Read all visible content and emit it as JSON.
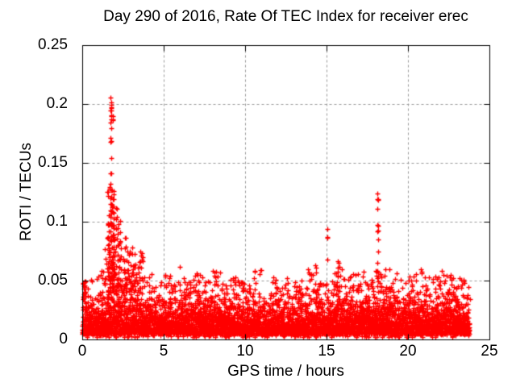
{
  "chart_data": {
    "type": "scatter",
    "title": "Day 290 of 2016, Rate Of TEC Index for receiver erec",
    "xlabel": "GPS time / hours",
    "ylabel": "ROTI / TECUs",
    "xlim": [
      0,
      25
    ],
    "ylim": [
      0,
      0.25
    ],
    "xticks": {
      "values": [
        0,
        5,
        10,
        15,
        20,
        25
      ],
      "labels": [
        "0",
        "5",
        "10",
        "15",
        "20",
        "25"
      ]
    },
    "yticks": {
      "values": [
        0,
        0.05,
        0.1,
        0.15,
        0.2,
        0.25
      ],
      "labels": [
        "0",
        "0.05",
        "0.1",
        "0.15",
        "0.2",
        "0.25"
      ]
    },
    "grid": {
      "visible": true,
      "style": "dashed",
      "color": "#999999"
    },
    "frame_color": "#000000",
    "marker": {
      "shape": "plus",
      "color": "#ff0000",
      "size": 7
    },
    "series_name": "ROTI",
    "x_data_range": [
      0,
      23.8
    ],
    "baseline_band": {
      "floor": 0.0045,
      "scale": 0.011,
      "low_fringe_min": 0.002,
      "low_fringe_span": 0.004,
      "low_fringe_prob": 0.05,
      "description": "dense noise band of ROTI values roughly 0.002-0.045 TECU across all hours"
    },
    "envelope_bin_hours": 0.5,
    "envelope": [
      0.05,
      0.052,
      0.058,
      0.072,
      0.07,
      0.074,
      0.064,
      0.068,
      0.058,
      0.052,
      0.056,
      0.05,
      0.063,
      0.055,
      0.057,
      0.051,
      0.059,
      0.054,
      0.057,
      0.05,
      0.046,
      0.059,
      0.046,
      0.054,
      0.049,
      0.055,
      0.051,
      0.06,
      0.056,
      0.049,
      0.051,
      0.061,
      0.054,
      0.057,
      0.06,
      0.054,
      0.057,
      0.061,
      0.057,
      0.051,
      0.055,
      0.061,
      0.053,
      0.055,
      0.059,
      0.057,
      0.053,
      0.05
    ],
    "spike_clusters": [
      {
        "x": 1.6,
        "values": [
          0.097,
          0.091,
          0.086,
          0.08
        ]
      },
      {
        "x": 1.76,
        "values": [
          0.207,
          0.2,
          0.198,
          0.195,
          0.191,
          0.187,
          0.184,
          0.178,
          0.172,
          0.168,
          0.155,
          0.141,
          0.131,
          0.126,
          0.121,
          0.116,
          0.11,
          0.104,
          0.099,
          0.093,
          0.088,
          0.082
        ]
      },
      {
        "x": 1.9,
        "values": [
          0.19,
          0.186,
          0.118,
          0.108,
          0.096,
          0.088
        ]
      },
      {
        "x": 2.1,
        "values": [
          0.112,
          0.103,
          0.094,
          0.086,
          0.079
        ]
      },
      {
        "x": 2.35,
        "values": [
          0.101,
          0.092,
          0.083
        ]
      },
      {
        "x": 2.65,
        "values": [
          0.086,
          0.078
        ]
      },
      {
        "x": 3.1,
        "values": [
          0.079,
          0.072
        ]
      },
      {
        "x": 11.83,
        "values": [
          0.047
        ]
      },
      {
        "x": 14.35,
        "values": [
          0.062,
          0.058
        ]
      },
      {
        "x": 15.05,
        "values": [
          0.093,
          0.086,
          0.068
        ]
      },
      {
        "x": 15.7,
        "values": [
          0.067,
          0.064,
          0.061
        ]
      },
      {
        "x": 18.15,
        "values": [
          0.125,
          0.123,
          0.119,
          0.118,
          0.112,
          0.098,
          0.093,
          0.085,
          0.076,
          0.066,
          0.058
        ]
      }
    ],
    "dense_clusters": [
      {
        "x_range": [
          1.35,
          2.4
        ],
        "y_range": [
          0.04,
          0.1
        ],
        "count": 90,
        "bias": 1.6
      },
      {
        "x_range": [
          1.55,
          1.95
        ],
        "y_range": [
          0.05,
          0.135
        ],
        "count": 45,
        "bias": 1.3
      },
      {
        "x_range": [
          2.4,
          3.7
        ],
        "y_range": [
          0.04,
          0.075
        ],
        "count": 55,
        "bias": 1.5
      },
      {
        "x_range": [
          0.02,
          0.2
        ],
        "y_range": [
          0.034,
          0.05
        ],
        "count": 14,
        "bias": 1.0
      },
      {
        "x_range": [
          18.0,
          18.4
        ],
        "y_range": [
          0.044,
          0.06
        ],
        "count": 12,
        "bias": 1.2
      },
      {
        "x_range": [
          15.45,
          15.9
        ],
        "y_range": [
          0.044,
          0.062
        ],
        "count": 12,
        "bias": 1.2
      }
    ],
    "points_estimate": 6200,
    "seed": 1290
  }
}
